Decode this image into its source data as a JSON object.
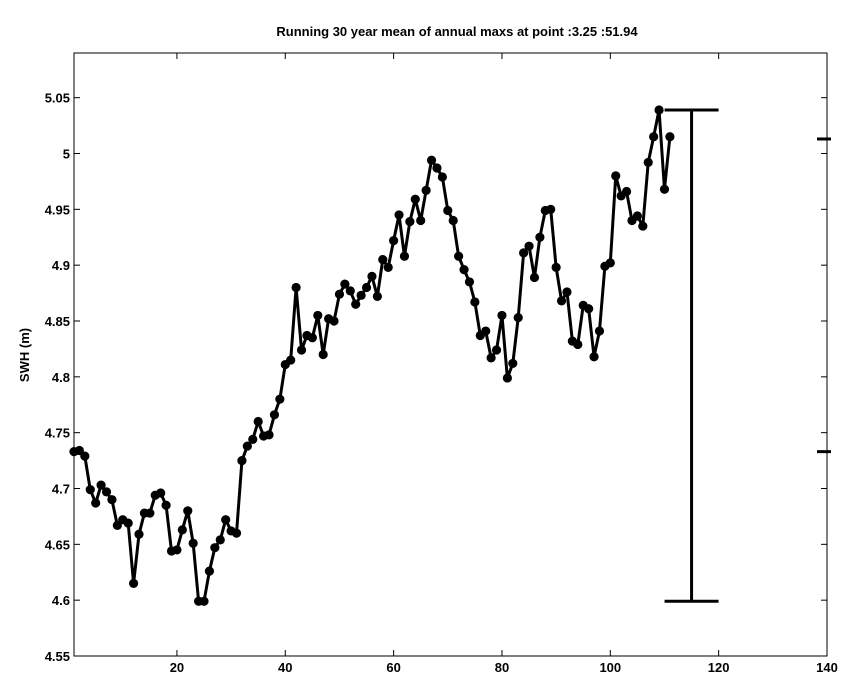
{
  "chart_data": {
    "type": "line",
    "title": "Running 30 year mean of annual maxs at point :3.25 :51.94",
    "xlabel": "",
    "ylabel": "SWH (m)",
    "xlim": [
      1,
      140
    ],
    "ylim": [
      4.55,
      5.09
    ],
    "x_ticks": [
      "20",
      "40",
      "60",
      "80",
      "100",
      "120",
      "140"
    ],
    "y_ticks": [
      "4.55",
      "4.6",
      "4.65",
      "4.7",
      "4.75",
      "4.8",
      "4.85",
      "4.9",
      "4.95",
      "5",
      "5.05"
    ],
    "grid": false,
    "marker": "circle",
    "series": [
      {
        "color": "#000000",
        "x": [
          1,
          2,
          3,
          4,
          5,
          6,
          7,
          8,
          9,
          10,
          11,
          12,
          13,
          14,
          15,
          16,
          17,
          18,
          19,
          20,
          21,
          22,
          23,
          24,
          25,
          26,
          27,
          28,
          29,
          30,
          31,
          32,
          33,
          34,
          35,
          36,
          37,
          38,
          39,
          40,
          41,
          42,
          43,
          44,
          45,
          46,
          47,
          48,
          49,
          50,
          51,
          52,
          53,
          54,
          55,
          56,
          57,
          58,
          59,
          60,
          61,
          62,
          63,
          64,
          65,
          66,
          67,
          68,
          69,
          70,
          71,
          72,
          73,
          74,
          75,
          76,
          77,
          78,
          79,
          80,
          81,
          82,
          83,
          84,
          85,
          86,
          87,
          88,
          89,
          90,
          91,
          92,
          93,
          94,
          95,
          96,
          97,
          98,
          99,
          100,
          101,
          102,
          103,
          104,
          105,
          106,
          107,
          108,
          109,
          110,
          111
        ],
        "y": [
          4.733,
          4.734,
          4.729,
          4.699,
          4.687,
          4.703,
          4.697,
          4.69,
          4.667,
          4.672,
          4.669,
          4.615,
          4.659,
          4.678,
          4.678,
          4.694,
          4.696,
          4.685,
          4.644,
          4.645,
          4.663,
          4.68,
          4.651,
          4.599,
          4.599,
          4.626,
          4.647,
          4.654,
          4.672,
          4.662,
          4.66,
          4.725,
          4.738,
          4.744,
          4.76,
          4.747,
          4.748,
          4.766,
          4.78,
          4.811,
          4.815,
          4.88,
          4.824,
          4.837,
          4.835,
          4.855,
          4.82,
          4.852,
          4.85,
          4.874,
          4.883,
          4.877,
          4.865,
          4.873,
          4.88,
          4.89,
          4.872,
          4.905,
          4.898,
          4.922,
          4.945,
          4.908,
          4.939,
          4.959,
          4.94,
          4.967,
          4.994,
          4.987,
          4.979,
          4.949,
          4.94,
          4.908,
          4.896,
          4.885,
          4.867,
          4.837,
          4.841,
          4.817,
          4.824,
          4.855,
          4.799,
          4.812,
          4.853,
          4.911,
          4.917,
          4.889,
          4.925,
          4.949,
          4.95,
          4.898,
          4.868,
          4.876,
          4.832,
          4.829,
          4.864,
          4.861,
          4.818,
          4.841,
          4.899,
          4.902,
          4.98,
          4.962,
          4.966,
          4.94,
          4.944,
          4.935,
          4.992,
          5.015,
          5.039,
          4.968,
          5.015
        ]
      }
    ],
    "annotations": [
      {
        "type": "range_bar",
        "x": 115,
        "y_low": 4.599,
        "y_high": 5.039
      }
    ],
    "right_axis_ticks": [
      5.013,
      4.733
    ]
  }
}
